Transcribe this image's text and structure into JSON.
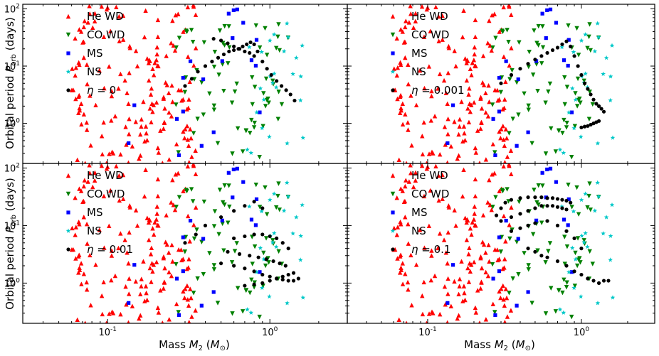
{
  "figure": {
    "shared_ylabel": "Orbital period P_orb (days)",
    "shared_xlabel": "Mass M_2 (M_⊙)"
  },
  "chart_data": [
    {
      "type": "scatter",
      "panel": "top-left",
      "xscale": "log",
      "yscale": "log",
      "xlim": [
        0.03,
        3.0
      ],
      "ylim": [
        0.2,
        120
      ],
      "xticks": [],
      "yticks": [
        "10^0",
        "10^1",
        "10^2"
      ],
      "xlabel": "",
      "ylabel": "Orbital period P_orb (days)",
      "legend": {
        "position": "top-left",
        "entries": [
          "He WD",
          "CO WD",
          "MS",
          "NS",
          "η = 0"
        ]
      },
      "series": [
        {
          "name": "He WD",
          "color": "#ff0000",
          "marker": "triangle-up",
          "count": 170,
          "x_range": [
            0.06,
            0.35
          ],
          "y_range": [
            0.2,
            120
          ]
        },
        {
          "name": "CO WD",
          "color": "#008000",
          "marker": "triangle-down",
          "count": 70,
          "x_range": [
            0.25,
            1.3
          ],
          "y_range": [
            0.25,
            60
          ]
        },
        {
          "name": "MS",
          "color": "#0000ff",
          "marker": "square",
          "count": 20,
          "x_range": [
            0.12,
            0.9
          ],
          "y_range": [
            0.25,
            100
          ]
        },
        {
          "name": "NS",
          "color": "#00c8c8",
          "marker": "star",
          "count": 25,
          "x_range": [
            0.7,
            1.6
          ],
          "y_range": [
            0.3,
            60
          ]
        },
        {
          "name": "η = 0",
          "color": "#000000",
          "marker": "circle",
          "x": [
            0.3,
            0.33,
            0.36,
            0.4,
            0.44,
            0.48,
            0.52,
            0.56,
            0.6,
            0.64,
            0.68,
            0.72,
            0.76,
            0.8,
            0.84,
            0.9,
            0.96,
            1.02,
            1.1,
            1.18,
            1.26,
            1.34,
            1.42,
            0.45,
            0.5,
            0.55,
            0.6,
            0.65,
            0.7,
            0.75,
            0.8
          ],
          "y": [
            4.5,
            6,
            8,
            10,
            12,
            14,
            16,
            18,
            19,
            20,
            22,
            24,
            26,
            24,
            18,
            12,
            9,
            7,
            5.5,
            4.5,
            3.8,
            3.2,
            2.5,
            30,
            28,
            25,
            22,
            20,
            18,
            17,
            15
          ]
        }
      ]
    },
    {
      "type": "scatter",
      "panel": "top-right",
      "xscale": "log",
      "yscale": "log",
      "xlim": [
        0.03,
        3.0
      ],
      "ylim": [
        0.2,
        120
      ],
      "xticks": [],
      "yticks": [],
      "xlabel": "",
      "ylabel": "",
      "legend": {
        "position": "top-left",
        "entries": [
          "He WD",
          "CO WD",
          "MS",
          "NS",
          "η = 0.001"
        ]
      },
      "series": [
        {
          "name": "He WD",
          "color": "#ff0000",
          "marker": "triangle-up",
          "count": 170,
          "x_range": [
            0.06,
            0.35
          ],
          "y_range": [
            0.2,
            120
          ]
        },
        {
          "name": "CO WD",
          "color": "#008000",
          "marker": "triangle-down",
          "count": 70,
          "x_range": [
            0.25,
            1.3
          ],
          "y_range": [
            0.25,
            60
          ]
        },
        {
          "name": "MS",
          "color": "#0000ff",
          "marker": "square",
          "count": 20,
          "x_range": [
            0.12,
            0.9
          ],
          "y_range": [
            0.25,
            100
          ]
        },
        {
          "name": "NS",
          "color": "#00c8c8",
          "marker": "star",
          "count": 25,
          "x_range": [
            0.7,
            1.6
          ],
          "y_range": [
            0.3,
            60
          ]
        },
        {
          "name": "η = 0.001",
          "color": "#000000",
          "marker": "circle",
          "x": [
            0.3,
            0.35,
            0.4,
            0.45,
            0.5,
            0.55,
            0.6,
            0.65,
            0.7,
            0.75,
            0.8,
            0.85,
            0.9,
            0.95,
            1.0,
            1.05,
            1.1,
            1.15,
            1.2,
            1.25,
            1.3,
            1.35,
            1.4,
            1.0,
            1.05,
            1.1,
            1.15,
            1.2,
            1.25,
            1.3
          ],
          "y": [
            5,
            7,
            9,
            11,
            13,
            15,
            17,
            19,
            21,
            24,
            27,
            22,
            15,
            10,
            7,
            5,
            4,
            3.2,
            2.6,
            2.2,
            2,
            1.8,
            1.6,
            0.85,
            0.88,
            0.9,
            0.95,
            1.0,
            1.05,
            1.1
          ]
        }
      ]
    },
    {
      "type": "scatter",
      "panel": "bottom-left",
      "xscale": "log",
      "yscale": "log",
      "xlim": [
        0.03,
        3.0
      ],
      "ylim": [
        0.2,
        120
      ],
      "xticks": [
        "10^-1",
        "10^0"
      ],
      "yticks": [
        "10^0",
        "10^1",
        "10^2"
      ],
      "xlabel": "Mass M_2 (M_⊙)",
      "ylabel": "Orbital period P_orb (days)",
      "legend": {
        "position": "top-left",
        "entries": [
          "He WD",
          "CO WD",
          "MS",
          "NS",
          "η = 0.01"
        ]
      },
      "series": [
        {
          "name": "He WD",
          "color": "#ff0000",
          "marker": "triangle-up",
          "count": 170,
          "x_range": [
            0.06,
            0.35
          ],
          "y_range": [
            0.2,
            120
          ]
        },
        {
          "name": "CO WD",
          "color": "#008000",
          "marker": "triangle-down",
          "count": 70,
          "x_range": [
            0.25,
            1.3
          ],
          "y_range": [
            0.25,
            60
          ]
        },
        {
          "name": "MS",
          "color": "#0000ff",
          "marker": "square",
          "count": 20,
          "x_range": [
            0.12,
            0.9
          ],
          "y_range": [
            0.25,
            100
          ]
        },
        {
          "name": "NS",
          "color": "#00c8c8",
          "marker": "star",
          "count": 25,
          "x_range": [
            0.7,
            1.6
          ],
          "y_range": [
            0.3,
            60
          ]
        },
        {
          "name": "η = 0.01",
          "color": "#000000",
          "marker": "circle",
          "x": [
            0.3,
            0.35,
            0.4,
            0.5,
            0.6,
            0.7,
            0.8,
            0.9,
            0.5,
            0.6,
            0.7,
            0.8,
            0.9,
            1.0,
            1.1,
            1.2,
            1.3,
            1.4,
            0.55,
            0.65,
            0.75,
            0.85,
            0.95,
            1.05,
            1.15,
            1.25,
            0.6,
            0.7,
            0.8,
            0.9,
            1.0,
            1.1,
            1.2,
            1.3,
            0.7,
            0.8,
            0.9,
            1.0,
            1.1,
            1.2,
            1.3,
            1.4,
            1.5
          ],
          "y": [
            5,
            7,
            10,
            14,
            18,
            22,
            26,
            20,
            2.2,
            2.0,
            1.8,
            1.6,
            1.4,
            1.3,
            1.2,
            1.15,
            1.1,
            1.1,
            3.5,
            3.2,
            3.0,
            2.8,
            2.6,
            2.4,
            2.2,
            2.0,
            6,
            6.5,
            7,
            7,
            6.5,
            6,
            5,
            4,
            0.9,
            0.95,
            1.0,
            1.1,
            1.2,
            1.3,
            1.4,
            1.5,
            1.2
          ]
        }
      ]
    },
    {
      "type": "scatter",
      "panel": "bottom-right",
      "xscale": "log",
      "yscale": "log",
      "xlim": [
        0.03,
        3.0
      ],
      "ylim": [
        0.2,
        120
      ],
      "xticks": [
        "10^-1",
        "10^0"
      ],
      "yticks": [],
      "xlabel": "Mass M_2 (M_⊙)",
      "ylabel": "",
      "legend": {
        "position": "top-left",
        "entries": [
          "He WD",
          "CO WD",
          "MS",
          "NS",
          "η = 0.1"
        ]
      },
      "series": [
        {
          "name": "He WD",
          "color": "#ff0000",
          "marker": "triangle-up",
          "count": 170,
          "x_range": [
            0.06,
            0.35
          ],
          "y_range": [
            0.2,
            120
          ]
        },
        {
          "name": "CO WD",
          "color": "#008000",
          "marker": "triangle-down",
          "count": 70,
          "x_range": [
            0.25,
            1.3
          ],
          "y_range": [
            0.25,
            60
          ]
        },
        {
          "name": "MS",
          "color": "#0000ff",
          "marker": "square",
          "count": 20,
          "x_range": [
            0.12,
            0.9
          ],
          "y_range": [
            0.25,
            100
          ]
        },
        {
          "name": "NS",
          "color": "#00c8c8",
          "marker": "star",
          "count": 25,
          "x_range": [
            0.7,
            1.6
          ],
          "y_range": [
            0.3,
            60
          ]
        },
        {
          "name": "η = 0.1",
          "color": "#000000",
          "marker": "circle",
          "x": [
            0.28,
            0.3,
            0.32,
            0.35,
            0.4,
            0.45,
            0.5,
            0.55,
            0.6,
            0.65,
            0.7,
            0.75,
            0.8,
            0.85,
            0.3,
            0.35,
            0.4,
            0.45,
            0.5,
            0.55,
            0.6,
            0.65,
            0.7,
            0.75,
            0.8,
            0.35,
            0.4,
            0.45,
            0.5,
            0.6,
            0.7,
            0.8,
            0.9,
            1.0,
            0.45,
            0.5,
            0.55,
            0.6,
            0.7,
            0.8,
            0.9,
            1.0,
            1.1,
            1.2,
            1.3,
            1.4,
            1.5
          ],
          "y": [
            15,
            20,
            25,
            28,
            30,
            31,
            31,
            31,
            30,
            30,
            29,
            28,
            27,
            25,
            12,
            14,
            16,
            18,
            20,
            22,
            22,
            22,
            21,
            20,
            19,
            8,
            9,
            10,
            11,
            12,
            10,
            8,
            6,
            4,
            4,
            3.5,
            3,
            2.8,
            2.4,
            2.0,
            1.6,
            1.4,
            1.2,
            1.1,
            1.0,
            1.1,
            1.1
          ]
        }
      ]
    }
  ]
}
